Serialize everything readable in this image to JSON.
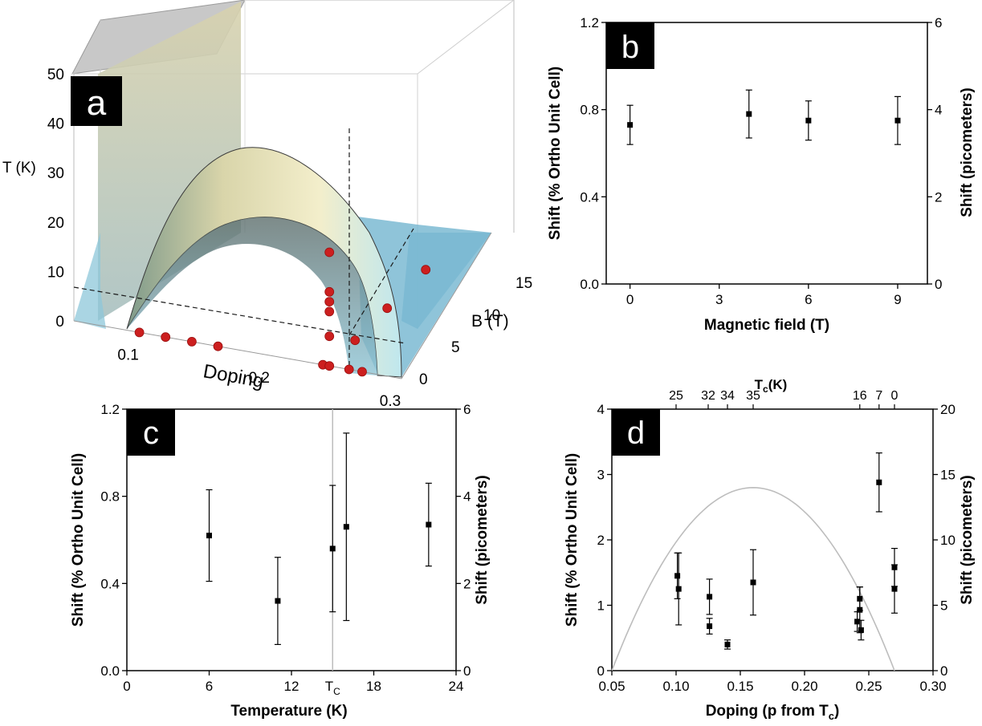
{
  "chart_data": [
    {
      "panel": "a",
      "type": "scatter",
      "view": "3d-surface",
      "title": "",
      "zlabel": "T (K)",
      "xlabel": "Doping",
      "ylabel": "B (T)",
      "z_ticks": [
        "50",
        "40",
        "30",
        "20",
        "10",
        "0"
      ],
      "x_ticks": [
        "0.1",
        "0.2",
        "0.3"
      ],
      "y_ticks": [
        "0",
        "5",
        "10",
        "15"
      ],
      "xlim": [
        0.05,
        0.3
      ],
      "ylim": [
        0,
        15
      ],
      "zlim": [
        0,
        50
      ],
      "surface": "Tc dome, peak about 38 K near doping 0.16, zero near 0.05 and 0.27",
      "series": [
        {
          "points": [
            {
              "doping": 0.1,
              "B": 0,
              "T": 0
            },
            {
              "doping": 0.12,
              "B": 0,
              "T": 0
            },
            {
              "doping": 0.14,
              "B": 0,
              "T": 0
            },
            {
              "doping": 0.16,
              "B": 0,
              "T": 0
            },
            {
              "doping": 0.24,
              "B": 0,
              "T": 0
            },
            {
              "doping": 0.245,
              "B": 0,
              "T": 0
            },
            {
              "doping": 0.26,
              "B": 0,
              "T": 0
            },
            {
              "doping": 0.27,
              "B": 0,
              "T": 0
            },
            {
              "doping": 0.245,
              "B": 0,
              "T": 6
            },
            {
              "doping": 0.245,
              "B": 0,
              "T": 11
            },
            {
              "doping": 0.245,
              "B": 0,
              "T": 13
            },
            {
              "doping": 0.245,
              "B": 0,
              "T": 15
            },
            {
              "doping": 0.245,
              "B": 0,
              "T": 23
            },
            {
              "doping": 0.245,
              "B": 4,
              "T": 0
            },
            {
              "doping": 0.245,
              "B": 9,
              "T": 0
            },
            {
              "doping": 0.245,
              "B": 15,
              "T": 0
            }
          ]
        }
      ]
    },
    {
      "panel": "b",
      "type": "scatter",
      "title": "",
      "xlabel": "Magnetic field (T)",
      "ylabel": "Shift (% Ortho Unit Cell)",
      "ylabel_right": "Shift (picometers)",
      "xlim": [
        -0.8,
        10
      ],
      "ylim": [
        0,
        1.2
      ],
      "x_ticks": [
        "0",
        "3",
        "6",
        "9"
      ],
      "y_ticks": [
        "0.0",
        "0.4",
        "0.8",
        "1.2"
      ],
      "y2_ticks": [
        "0",
        "2",
        "4",
        "6"
      ],
      "grid": false,
      "series": [
        {
          "points": [
            {
              "x": 0,
              "y": 0.73,
              "err": 0.09
            },
            {
              "x": 4,
              "y": 0.78,
              "err": 0.11
            },
            {
              "x": 6,
              "y": 0.75,
              "err": 0.09
            },
            {
              "x": 9,
              "y": 0.75,
              "err": 0.11
            }
          ]
        }
      ]
    },
    {
      "panel": "c",
      "type": "scatter",
      "title": "",
      "xlabel": "Temperature (K)",
      "ylabel": "Shift (% Ortho Unit Cell)",
      "ylabel_right": "Shift (picometers)",
      "xlim": [
        0,
        24
      ],
      "ylim": [
        0,
        1.2
      ],
      "x_ticks": [
        "0",
        "6",
        "12",
        "18",
        "24"
      ],
      "x_extra_tick": "T",
      "x_extra_tick_sub": "C",
      "tc_value": 15,
      "y_ticks": [
        "0.0",
        "0.4",
        "0.8",
        "1.2"
      ],
      "y2_ticks": [
        "0",
        "2",
        "4",
        "6"
      ],
      "grid": false,
      "series": [
        {
          "points": [
            {
              "x": 6,
              "y": 0.62,
              "err": 0.21
            },
            {
              "x": 11,
              "y": 0.32,
              "err": 0.2
            },
            {
              "x": 15,
              "y": 0.56,
              "err": 0.29
            },
            {
              "x": 16,
              "y": 0.66,
              "err": 0.43
            },
            {
              "x": 22,
              "y": 0.67,
              "err": 0.19
            }
          ]
        }
      ]
    },
    {
      "panel": "d",
      "type": "scatter",
      "title": "",
      "xlabel": "Doping (p from T",
      "xlabel_sub": "c",
      "xlabel_end": ")",
      "top_label": "T",
      "top_label_sub": "c",
      "top_label_end": "(K)",
      "ylabel": "Shift (% Ortho Unit Cell)",
      "ylabel_right": "Shift (picometers)",
      "xlim": [
        0.05,
        0.3
      ],
      "ylim": [
        0,
        4
      ],
      "x_ticks": [
        "0.05",
        "0.10",
        "0.15",
        "0.20",
        "0.25",
        "0.30"
      ],
      "top_ticks": [
        {
          "label": "25",
          "x": 0.1
        },
        {
          "label": "32",
          "x": 0.125
        },
        {
          "label": "34",
          "x": 0.14
        },
        {
          "label": "35",
          "x": 0.16
        },
        {
          "label": "16",
          "x": 0.243
        },
        {
          "label": "7",
          "x": 0.258
        },
        {
          "label": "0",
          "x": 0.27
        }
      ],
      "y_ticks": [
        "0",
        "1",
        "2",
        "3",
        "4"
      ],
      "y2_ticks": [
        "0",
        "5",
        "10",
        "15",
        "20"
      ],
      "grid": false,
      "dome": {
        "p_min": 0.05,
        "p_max": 0.27,
        "peak": 2.8
      },
      "series": [
        {
          "points": [
            {
              "x": 0.101,
              "y": 1.45,
              "err": 0.35
            },
            {
              "x": 0.102,
              "y": 1.25,
              "err": 0.55
            },
            {
              "x": 0.126,
              "y": 1.13,
              "err": 0.27
            },
            {
              "x": 0.126,
              "y": 0.68,
              "err": 0.12
            },
            {
              "x": 0.14,
              "y": 0.4,
              "err": 0.07
            },
            {
              "x": 0.16,
              "y": 1.35,
              "err": 0.5
            },
            {
              "x": 0.241,
              "y": 0.75,
              "err": 0.15
            },
            {
              "x": 0.243,
              "y": 1.1,
              "err": 0.18
            },
            {
              "x": 0.243,
              "y": 0.93,
              "err": 0.35
            },
            {
              "x": 0.244,
              "y": 0.62,
              "err": 0.15
            },
            {
              "x": 0.258,
              "y": 2.88,
              "err": 0.45
            },
            {
              "x": 0.27,
              "y": 1.58,
              "err": 0.29
            },
            {
              "x": 0.27,
              "y": 1.25,
              "err": 0.37
            }
          ]
        }
      ]
    }
  ]
}
